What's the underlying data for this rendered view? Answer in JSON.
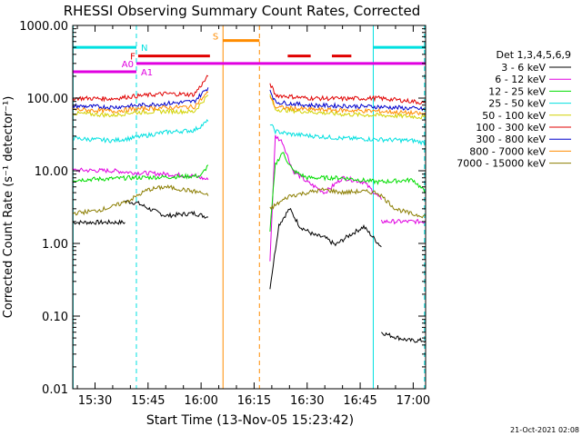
{
  "chart_data": {
    "type": "line",
    "title": "RHESSI Observing Summary Count Rates, Corrected",
    "xlabel": "Start Time (13-Nov-05 15:23:42)",
    "ylabel": "Corrected Count Rate (s⁻¹ detector⁻¹)",
    "yscale": "log",
    "ylim": [
      0.01,
      1000
    ],
    "xlim_minutes_since_1530": [
      -6.3,
      93.5
    ],
    "x_tick_labels": [
      "15:30",
      "15:45",
      "16:00",
      "16:15",
      "16:30",
      "16:45",
      "17:00"
    ],
    "y_tick_labels": [
      "1000.00",
      "100.00",
      "10.00",
      "1.00",
      "0.10",
      "0.01"
    ],
    "legend_title": "Det 1,3,4,5,6,9",
    "legend_position": "right",
    "footer_date": "21-Oct-2021 02:08",
    "series": [
      {
        "name": "3 - 6 keV",
        "color": "#000000",
        "segments": [
          {
            "x": [
              -6.3,
              8.5
            ],
            "y": [
              1.95,
              1.95
            ]
          },
          {
            "x": [
              8.5,
              12,
              16,
              20,
              24,
              28,
              32
            ],
            "y": [
              3.8,
              3.6,
              2.9,
              2.4,
              2.5,
              2.6,
              2.3
            ]
          },
          {
            "x": [
              49.5,
              52,
              55,
              58,
              62,
              65,
              68,
              72,
              76,
              81
            ],
            "y": [
              0.25,
              1.8,
              3.0,
              1.7,
              1.3,
              1.2,
              0.95,
              1.3,
              1.7,
              0.9
            ]
          },
          {
            "x": [
              81,
              83,
              86,
              89,
              92,
              93.5
            ],
            "y": [
              0.06,
              0.055,
              0.05,
              0.046,
              0.046,
              0.046
            ]
          }
        ]
      },
      {
        "name": "6 - 12 keV",
        "color": "#e000e0",
        "segments": [
          {
            "x": [
              -6.3,
              5,
              10,
              20,
              28,
              32
            ],
            "y": [
              10.2,
              10.0,
              9.5,
              9.0,
              8.5,
              7.5
            ]
          },
          {
            "x": [
              49.5,
              51,
              53,
              56,
              60,
              65,
              70,
              76,
              81
            ],
            "y": [
              0.6,
              30,
              25,
              10,
              7,
              5,
              8,
              7,
              4
            ]
          },
          {
            "x": [
              81,
              85,
              90,
              93.5
            ],
            "y": [
              2.0,
              2.0,
              2.0,
              2.0
            ]
          }
        ]
      },
      {
        "name": "12 - 25 keV",
        "color": "#00dd00",
        "segments": [
          {
            "x": [
              -6.3,
              5,
              10,
              20,
              30,
              32
            ],
            "y": [
              7.5,
              7.8,
              8.0,
              8.2,
              8.5,
              12
            ]
          },
          {
            "x": [
              49.5,
              51,
              53,
              56,
              60,
              70,
              80,
              90,
              93.5
            ],
            "y": [
              1.5,
              12,
              18,
              10,
              8,
              8,
              7,
              7.5,
              5
            ]
          }
        ]
      },
      {
        "name": "25 - 50 keV",
        "color": "#00e0e0",
        "segments": [
          {
            "x": [
              -6.3,
              5,
              10,
              20,
              28,
              32
            ],
            "y": [
              28,
              26,
              28,
              34,
              36,
              48
            ]
          },
          {
            "x": [
              49.5,
              51,
              55,
              62,
              70,
              80,
              90,
              93.5
            ],
            "y": [
              45,
              35,
              32,
              30,
              28,
              27,
              26,
              24
            ]
          }
        ]
      },
      {
        "name": "50 - 100 keV",
        "color": "#d2d200",
        "segments": [
          {
            "x": [
              -6.3,
              5,
              10,
              20,
              28,
              32
            ],
            "y": [
              62,
              58,
              63,
              66,
              65,
              110
            ]
          },
          {
            "x": [
              49.5,
              51,
              60,
              70,
              80,
              90,
              93.5
            ],
            "y": [
              110,
              70,
              65,
              60,
              58,
              56,
              54
            ]
          }
        ]
      },
      {
        "name": "100 - 300 keV",
        "color": "#e00000",
        "segments": [
          {
            "x": [
              -6.3,
              5,
              10,
              20,
              28,
              32
            ],
            "y": [
              100,
              98,
              105,
              115,
              112,
              200
            ]
          },
          {
            "x": [
              49.5,
              51,
              60,
              70,
              80,
              90,
              93.5
            ],
            "y": [
              160,
              110,
              100,
              98,
              100,
              90,
              85
            ]
          }
        ]
      },
      {
        "name": "300 - 800 keV",
        "color": "#0000cc",
        "segments": [
          {
            "x": [
              -6.3,
              5,
              10,
              20,
              28,
              32
            ],
            "y": [
              78,
              75,
              78,
              84,
              90,
              140
            ]
          },
          {
            "x": [
              49.5,
              51,
              60,
              70,
              80,
              90,
              93.5
            ],
            "y": [
              130,
              88,
              80,
              78,
              76,
              72,
              70
            ]
          }
        ]
      },
      {
        "name": "800 - 7000 keV",
        "color": "#ff8c00",
        "segments": [
          {
            "x": [
              -6.3,
              5,
              10,
              20,
              28,
              32
            ],
            "y": [
              70,
              66,
              70,
              74,
              76,
              120
            ]
          },
          {
            "x": [
              49.5,
              51,
              60,
              70,
              80,
              90,
              93.5
            ],
            "y": [
              110,
              75,
              70,
              68,
              66,
              62,
              60
            ]
          }
        ]
      },
      {
        "name": "7000 - 15000 keV",
        "color": "#8b7d00",
        "segments": [
          {
            "x": [
              -6.3,
              0,
              5,
              10,
              15,
              20,
              25,
              30,
              32
            ],
            "y": [
              2.6,
              2.8,
              3.2,
              4.0,
              5.5,
              6.0,
              5.5,
              5.0,
              4.5
            ]
          },
          {
            "x": [
              49.5,
              55,
              60,
              65,
              70,
              75,
              80,
              85,
              90,
              93.5
            ],
            "y": [
              3.0,
              4.5,
              5.0,
              5.5,
              5.0,
              5.2,
              5.0,
              3.0,
              2.5,
              2.4
            ]
          }
        ]
      }
    ],
    "annotations": [
      {
        "label": "N",
        "color": "#00e0e0",
        "y": 500,
        "segments": [
          [
            -6.3,
            11.7
          ],
          [
            78.7,
            93.5
          ]
        ]
      },
      {
        "label": "A0",
        "color": "#e000e0",
        "y": 300,
        "segments": [
          [
            11.7,
            93.5
          ]
        ]
      },
      {
        "label": "A1",
        "color": "#e000e0",
        "y": 230,
        "segments": [
          [
            -6.3,
            11.7
          ]
        ]
      },
      {
        "label": "F",
        "color": "#e00000",
        "y": 380,
        "segments": [
          [
            12.2,
            32.5
          ],
          [
            54.5,
            61
          ],
          [
            67,
            72.5
          ]
        ]
      },
      {
        "label": "S",
        "color": "#ff8c00",
        "y": 620,
        "segments": [
          [
            36.2,
            46.5
          ]
        ]
      }
    ],
    "vlines": [
      {
        "x": -6.2,
        "color": "#00e0e0",
        "style": "solid"
      },
      {
        "x": 11.7,
        "color": "#00e0e0",
        "style": "dashed"
      },
      {
        "x": 36.2,
        "color": "#ff8c00",
        "style": "solid"
      },
      {
        "x": 46.5,
        "color": "#ff8c00",
        "style": "dashed"
      },
      {
        "x": 78.7,
        "color": "#00e0e0",
        "style": "solid"
      },
      {
        "x": 93.2,
        "color": "#00e0e0",
        "style": "dashed"
      }
    ]
  }
}
